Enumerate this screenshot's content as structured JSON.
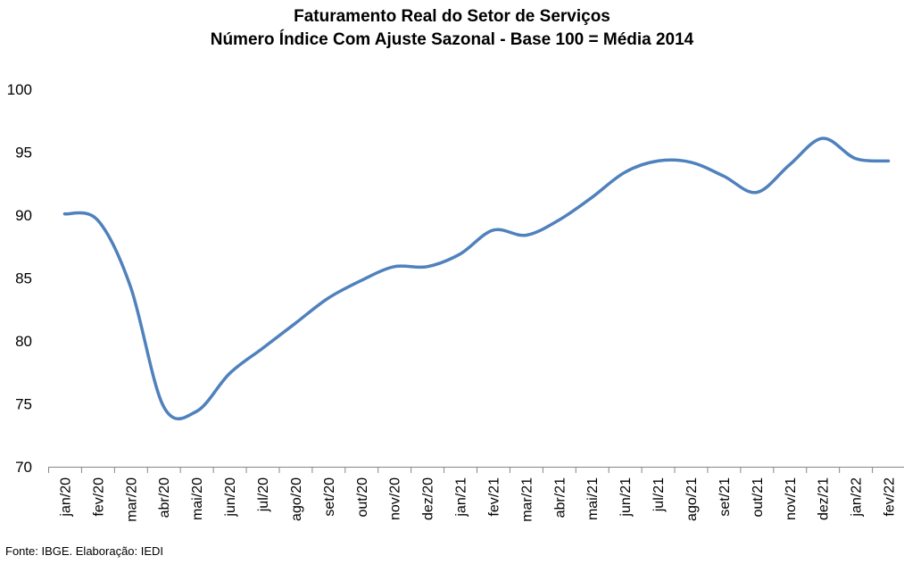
{
  "chart_data": {
    "type": "line",
    "title": "Faturamento Real do Setor de Serviços",
    "subtitle": "Número Índice Com Ajuste Sazonal - Base 100 = Média 2014",
    "categories": [
      "jan/20",
      "fev/20",
      "mar/20",
      "abr/20",
      "mai/20",
      "jun/20",
      "jul/20",
      "ago/20",
      "set/20",
      "out/20",
      "nov/20",
      "dez/20",
      "jan/21",
      "fev/21",
      "mar/21",
      "abr/21",
      "mai/21",
      "jun/21",
      "jul/21",
      "ago/21",
      "set/21",
      "out/21",
      "nov/21",
      "dez/21",
      "jan/22",
      "fev/22"
    ],
    "series": [
      {
        "values": [
          90.1,
          89.6,
          84.3,
          74.8,
          74.4,
          77.4,
          79.4,
          81.4,
          83.4,
          84.8,
          85.9,
          85.9,
          86.9,
          88.8,
          88.4,
          89.6,
          91.4,
          93.4,
          94.3,
          94.2,
          93.1,
          91.8,
          94.0,
          96.1,
          94.5,
          94.3
        ],
        "color": "#4f81bd"
      }
    ],
    "y_ticks": [
      "70",
      "75",
      "80",
      "85",
      "90",
      "95",
      "100"
    ],
    "ylim": [
      70,
      100
    ],
    "grid": false,
    "legend": "none"
  },
  "source": "Fonte: IBGE. Elaboração: IEDI"
}
